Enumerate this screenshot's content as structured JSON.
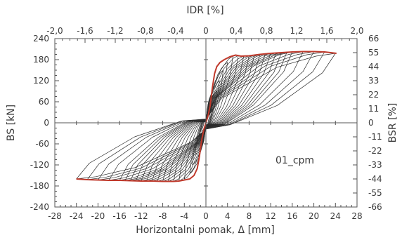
{
  "chart_data": {
    "type": "line",
    "title": "",
    "xlabel": "Horizontalni pomak, Δ [mm]",
    "ylabel": "BS [kN]",
    "x2label": "IDR [%]",
    "y2label": "BSR [%]",
    "annotation": "01_cpm",
    "xlim": [
      -28,
      28
    ],
    "ylim": [
      -240,
      240
    ],
    "x2lim": [
      -2.0,
      2.0
    ],
    "y2lim": [
      -66,
      66
    ],
    "x_ticks": [
      "-28",
      "-24",
      "-20",
      "-16",
      "-12",
      "-8",
      "-4",
      "0",
      "4",
      "8",
      "12",
      "16",
      "20",
      "24",
      "28"
    ],
    "y_ticks": [
      "240",
      "180",
      "120",
      "60",
      "0",
      "-60",
      "-120",
      "-180",
      "-240"
    ],
    "x2_ticks": [
      "-2,0",
      "-1,6",
      "-1,2",
      "-0,8",
      "-0,4",
      "0",
      "0,4",
      "0,8",
      "1,2",
      "1,6",
      "2,0"
    ],
    "y2_ticks": [
      "66",
      "55",
      "44",
      "33",
      "22",
      "11",
      "0",
      "-11",
      "-22",
      "-33",
      "-44",
      "-55",
      "-66"
    ],
    "grid": false,
    "colors": {
      "cycles": "#2b2b2b",
      "envelope": "#c0392b",
      "axis": "#555555"
    },
    "series": [
      {
        "role": "hysteresis cycles",
        "cycles": [
          {
            "amp_pos": 0.8,
            "peak_pos": 25,
            "amp_neg": -0.8,
            "peak_neg": -25
          },
          {
            "amp_pos": 1.2,
            "peak_pos": 40,
            "amp_neg": -1.2,
            "peak_neg": -40
          },
          {
            "amp_pos": 1.6,
            "peak_pos": 60,
            "amp_neg": -1.6,
            "peak_neg": -60
          },
          {
            "amp_pos": 2.0,
            "peak_pos": 90,
            "amp_neg": -2.0,
            "peak_neg": -90
          },
          {
            "amp_pos": 2.5,
            "peak_pos": 120,
            "amp_neg": -2.5,
            "peak_neg": -120
          },
          {
            "amp_pos": 3.2,
            "peak_pos": 150,
            "amp_neg": -3.0,
            "peak_neg": -145
          },
          {
            "amp_pos": 4.0,
            "peak_pos": 172,
            "amp_neg": -4.0,
            "peak_neg": -160
          },
          {
            "amp_pos": 5.0,
            "peak_pos": 190,
            "amp_neg": -5.0,
            "peak_neg": -166
          },
          {
            "amp_pos": 6.0,
            "peak_pos": 192,
            "amp_neg": -6.0,
            "peak_neg": -167
          },
          {
            "amp_pos": 7.0,
            "peak_pos": 190,
            "amp_neg": -7.0,
            "peak_neg": -167
          },
          {
            "amp_pos": 8.0,
            "peak_pos": 191,
            "amp_neg": -8.0,
            "peak_neg": -167
          },
          {
            "amp_pos": 9.0,
            "peak_pos": 193,
            "amp_neg": -9.0,
            "peak_neg": -167
          },
          {
            "amp_pos": 10.0,
            "peak_pos": 195,
            "amp_neg": -10.0,
            "peak_neg": -166
          },
          {
            "amp_pos": 11.0,
            "peak_pos": 197,
            "amp_neg": -11.0,
            "peak_neg": -166
          },
          {
            "amp_pos": 12.0,
            "peak_pos": 198,
            "amp_neg": -12.0,
            "peak_neg": -166
          },
          {
            "amp_pos": 13.0,
            "peak_pos": 199,
            "amp_neg": -13.0,
            "peak_neg": -165
          },
          {
            "amp_pos": 14.0,
            "peak_pos": 200,
            "amp_neg": -14.0,
            "peak_neg": -165
          },
          {
            "amp_pos": 15.0,
            "peak_pos": 201,
            "amp_neg": -15.0,
            "peak_neg": -165
          },
          {
            "amp_pos": 16.0,
            "peak_pos": 202,
            "amp_neg": -16.0,
            "peak_neg": -164
          },
          {
            "amp_pos": 18.0,
            "peak_pos": 203,
            "amp_neg": -18.0,
            "peak_neg": -164
          },
          {
            "amp_pos": 20.0,
            "peak_pos": 203,
            "amp_neg": -20.0,
            "peak_neg": -163
          },
          {
            "amp_pos": 22.0,
            "peak_pos": 202,
            "amp_neg": -22.0,
            "peak_neg": -162
          },
          {
            "amp_pos": 24.0,
            "peak_pos": 198,
            "amp_neg": -24.0,
            "peak_neg": -160
          }
        ]
      },
      {
        "role": "envelope",
        "positive": [
          {
            "x": 0,
            "y": 0
          },
          {
            "x": 0.4,
            "y": 20
          },
          {
            "x": 0.8,
            "y": 50
          },
          {
            "x": 1.2,
            "y": 100
          },
          {
            "x": 1.6,
            "y": 140
          },
          {
            "x": 2.0,
            "y": 160
          },
          {
            "x": 2.6,
            "y": 172
          },
          {
            "x": 3.4,
            "y": 180
          },
          {
            "x": 4.4,
            "y": 188
          },
          {
            "x": 5.5,
            "y": 193
          },
          {
            "x": 6.5,
            "y": 190
          },
          {
            "x": 8,
            "y": 191
          },
          {
            "x": 10,
            "y": 195
          },
          {
            "x": 12,
            "y": 198
          },
          {
            "x": 14,
            "y": 200
          },
          {
            "x": 16,
            "y": 202
          },
          {
            "x": 18,
            "y": 203
          },
          {
            "x": 20,
            "y": 203
          },
          {
            "x": 22,
            "y": 202
          },
          {
            "x": 24.2,
            "y": 198
          }
        ],
        "negative": [
          {
            "x": 0,
            "y": 0
          },
          {
            "x": -0.4,
            "y": -20
          },
          {
            "x": -0.8,
            "y": -50
          },
          {
            "x": -1.2,
            "y": -95
          },
          {
            "x": -1.6,
            "y": -130
          },
          {
            "x": -2.2,
            "y": -150
          },
          {
            "x": -3.0,
            "y": -160
          },
          {
            "x": -4.0,
            "y": -163
          },
          {
            "x": -5.0,
            "y": -166
          },
          {
            "x": -6,
            "y": -167
          },
          {
            "x": -8,
            "y": -167
          },
          {
            "x": -10,
            "y": -166
          },
          {
            "x": -12,
            "y": -166
          },
          {
            "x": -14,
            "y": -165
          },
          {
            "x": -16,
            "y": -164
          },
          {
            "x": -18,
            "y": -164
          },
          {
            "x": -20,
            "y": -163
          },
          {
            "x": -22,
            "y": -162
          },
          {
            "x": -24,
            "y": -160
          }
        ]
      }
    ]
  }
}
